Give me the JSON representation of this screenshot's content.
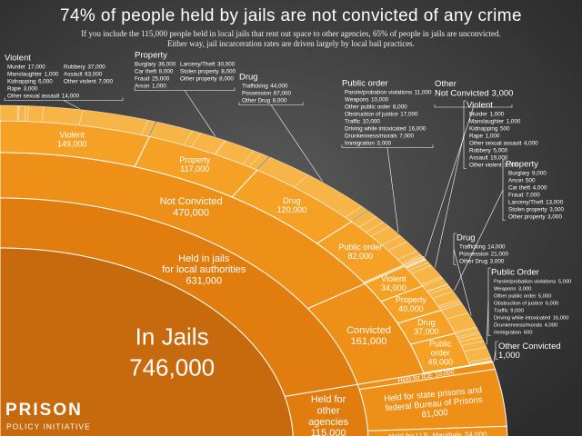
{
  "logo": {
    "name": "PRISON",
    "subname": "POLICY INITIATIVE"
  },
  "chart_data": {
    "type": "sunburst",
    "title": "74% of people held by jails are not convicted of any crime",
    "subtitle": [
      "If you include the 115,000 people held in local jails that rent out space to other agencies, 65% of people in jails are unconvicted.",
      "Either way, jail incarceration rates are driven largely by local bail practices."
    ],
    "level_colors": [
      "#c76a0d",
      "#e07d0e",
      "#ee8f17",
      "#f4a126",
      "#f7b548"
    ],
    "root": {
      "name": "In Jails",
      "value": 746000,
      "value_label": "746,000",
      "children": [
        {
          "name": [
            "Held in jails",
            "for local authorities"
          ],
          "value": 631000,
          "value_label": "631,000",
          "children": [
            {
              "name": "Not Convicted",
              "value": 470000,
              "value_label": "470,000",
              "children": [
                {
                  "name": "Violent",
                  "value": 149000,
                  "value_label": "149,000",
                  "children": [
                    {
                      "name": "Murder",
                      "value": 17000,
                      "value_label": "17,000"
                    },
                    {
                      "name": "Manslaughter",
                      "value": 1000,
                      "value_label": "1,000"
                    },
                    {
                      "name": "Kidnapping",
                      "value": 6000,
                      "value_label": "6,000"
                    },
                    {
                      "name": "Rape",
                      "value": 3000,
                      "value_label": "3,000"
                    },
                    {
                      "name": "Other sexual assault",
                      "value": 14000,
                      "value_label": "14,000"
                    },
                    {
                      "name": "Robbery",
                      "value": 37000,
                      "value_label": "37,000"
                    },
                    {
                      "name": "Assault",
                      "value": 63000,
                      "value_label": "63,000"
                    },
                    {
                      "name": "Other violent",
                      "value": 7000,
                      "value_label": "7,000"
                    }
                  ]
                },
                {
                  "name": "Property",
                  "value": 117000,
                  "value_label": "117,000",
                  "children": [
                    {
                      "name": "Burglary",
                      "value": 36000,
                      "value_label": "36,000"
                    },
                    {
                      "name": "Car theft",
                      "value": 8000,
                      "value_label": "8,000"
                    },
                    {
                      "name": "Fraud",
                      "value": 25000,
                      "value_label": "25,000"
                    },
                    {
                      "name": "Arson",
                      "value": 1000,
                      "value_label": "1,000"
                    },
                    {
                      "name": "Larceny/Theft",
                      "value": 30000,
                      "value_label": "30,000"
                    },
                    {
                      "name": "Stolen property",
                      "value": 8000,
                      "value_label": "8,000"
                    },
                    {
                      "name": "Other property",
                      "value": 8000,
                      "value_label": "8,000"
                    }
                  ]
                },
                {
                  "name": "Drug",
                  "value": 120000,
                  "value_label": "120,000",
                  "children": [
                    {
                      "name": "Trafficking",
                      "value": 44000,
                      "value_label": "44,000"
                    },
                    {
                      "name": "Possession",
                      "value": 67000,
                      "value_label": "67,000"
                    },
                    {
                      "name": "Other Drug",
                      "value": 8000,
                      "value_label": "8,000"
                    }
                  ]
                },
                {
                  "name": "Public order",
                  "value": 82000,
                  "value_label": "82,000",
                  "children": [
                    {
                      "name": "Parole/probation violations",
                      "value": 11000,
                      "value_label": "11,000"
                    },
                    {
                      "name": "Weapons",
                      "value": 10000,
                      "value_label": "10,000"
                    },
                    {
                      "name": "Other public order",
                      "value": 8000,
                      "value_label": "8,000"
                    },
                    {
                      "name": "Obstruction of justice",
                      "value": 17000,
                      "value_label": "17,000"
                    },
                    {
                      "name": "Traffic",
                      "value": 10000,
                      "value_label": "10,000"
                    },
                    {
                      "name": "Driving while intoxicated",
                      "value": 16000,
                      "value_label": "16,000"
                    },
                    {
                      "name": "Drunkenness/morals",
                      "value": 7000,
                      "value_label": "7,000"
                    },
                    {
                      "name": "Immigration",
                      "value": 3000,
                      "value_label": "3,000"
                    }
                  ]
                },
                {
                  "name": [
                    "Other",
                    "Not Convicted"
                  ],
                  "value": 3000,
                  "value_label": "3,000"
                }
              ]
            },
            {
              "name": "Convicted",
              "value": 161000,
              "value_label": "161,000",
              "children": [
                {
                  "name": "Violent",
                  "value": 34000,
                  "value_label": "34,000",
                  "children": [
                    {
                      "name": "Murder",
                      "value": 1000,
                      "value_label": "1,000"
                    },
                    {
                      "name": "Manslaughter",
                      "value": 1000,
                      "value_label": "1,000"
                    },
                    {
                      "name": "Kidnapping",
                      "value": 500,
                      "value_label": "500"
                    },
                    {
                      "name": "Rape",
                      "value": 1000,
                      "value_label": "1,000"
                    },
                    {
                      "name": "Other sexual assault",
                      "value": 4000,
                      "value_label": "4,000"
                    },
                    {
                      "name": "Robbery",
                      "value": 5000,
                      "value_label": "5,000"
                    },
                    {
                      "name": "Assault",
                      "value": 19000,
                      "value_label": "19,000"
                    },
                    {
                      "name": "Other violent",
                      "value": 3000,
                      "value_label": "3,000"
                    }
                  ]
                },
                {
                  "name": "Property",
                  "value": 40000,
                  "value_label": "40,000",
                  "children": [
                    {
                      "name": "Burglary",
                      "value": 9000,
                      "value_label": "9,000"
                    },
                    {
                      "name": "Arson",
                      "value": 500,
                      "value_label": "500"
                    },
                    {
                      "name": "Car theft",
                      "value": 4000,
                      "value_label": "4,000"
                    },
                    {
                      "name": "Fraud",
                      "value": 7000,
                      "value_label": "7,000"
                    },
                    {
                      "name": "Larceny/Theft",
                      "value": 13000,
                      "value_label": "13,000"
                    },
                    {
                      "name": "Stolen property",
                      "value": 3000,
                      "value_label": "3,000"
                    },
                    {
                      "name": "Other property",
                      "value": 3000,
                      "value_label": "3,000"
                    }
                  ]
                },
                {
                  "name": "Drug",
                  "value": 37000,
                  "value_label": "37,000",
                  "children": [
                    {
                      "name": "Trafficking",
                      "value": 14000,
                      "value_label": "14,000"
                    },
                    {
                      "name": "Possession",
                      "value": 21000,
                      "value_label": "21,000"
                    },
                    {
                      "name": "Other Drug",
                      "value": 3000,
                      "value_label": "3,000"
                    }
                  ]
                },
                {
                  "name": [
                    "Public",
                    "order"
                  ],
                  "callout_title": "Public Order",
                  "value": 49000,
                  "value_label": "49,000",
                  "children": [
                    {
                      "name": "Parole/probation violations",
                      "value": 5000,
                      "value_label": "5,000"
                    },
                    {
                      "name": "Weapons",
                      "value": 3000,
                      "value_label": "3,000"
                    },
                    {
                      "name": "Other public order",
                      "value": 5000,
                      "value_label": "5,000"
                    },
                    {
                      "name": "Obstruction of justice",
                      "value": 6000,
                      "value_label": "6,000"
                    },
                    {
                      "name": "Traffic",
                      "value": 9000,
                      "value_label": "9,000"
                    },
                    {
                      "name": "Driving while intoxicated",
                      "value": 16000,
                      "value_label": "16,000"
                    },
                    {
                      "name": "Drunkenness/morals",
                      "value": 4000,
                      "value_label": "4,000"
                    },
                    {
                      "name": "Immigration",
                      "value": 600,
                      "value_label": "600"
                    }
                  ]
                },
                {
                  "name": "Other Convicted",
                  "value": 1000,
                  "value_label": "1,000"
                }
              ]
            }
          ]
        },
        {
          "name": [
            "Held for",
            "other",
            "agencies"
          ],
          "value": 115000,
          "value_label": "115,000",
          "children": [
            {
              "name": "Held for ICE",
              "value": 10000,
              "value_label": "10,000"
            },
            {
              "name": [
                "Held for state prisons and",
                "federal Bureau of Prisons"
              ],
              "value": 81000,
              "value_label": "81,000"
            },
            {
              "name": "Held for U.S. Marshals",
              "value": 24000,
              "value_label": "24,000"
            }
          ]
        }
      ]
    }
  }
}
